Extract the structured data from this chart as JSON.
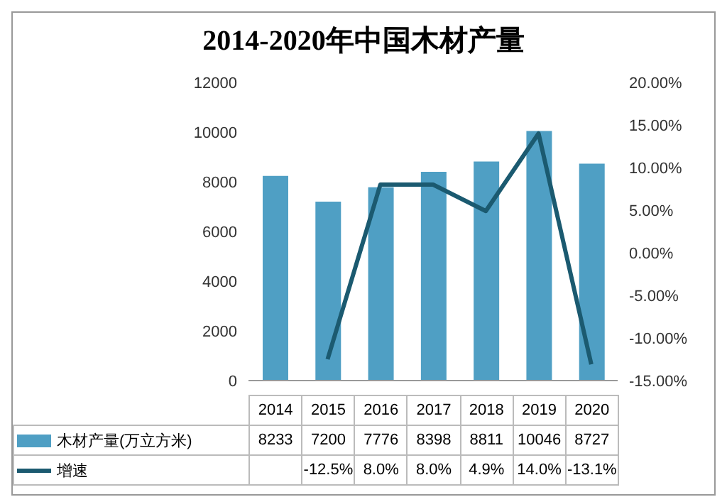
{
  "chart_data": {
    "type": "bar",
    "title": "2014-2020年中国木材产量",
    "categories": [
      "2014",
      "2015",
      "2016",
      "2017",
      "2018",
      "2019",
      "2020"
    ],
    "series": [
      {
        "name": "木材产量(万立方米)",
        "color": "#4f9fc4",
        "values": [
          8233,
          7200,
          7776,
          8398,
          8811,
          10046,
          8727
        ],
        "value_labels": [
          "8233",
          "7200",
          "7776",
          "8398",
          "8811",
          "10046",
          "8727"
        ]
      },
      {
        "name": "增速",
        "type": "line",
        "axis": "y2",
        "color": "#1b5a70",
        "values": [
          null,
          -12.5,
          8.0,
          8.0,
          4.9,
          14.0,
          -13.1
        ],
        "value_labels": [
          null,
          "-12.5%",
          "8.0%",
          "8.0%",
          "4.9%",
          "14.0%",
          "-13.1%"
        ]
      }
    ],
    "ylim": [
      0,
      12000
    ],
    "yticks": [
      0,
      2000,
      4000,
      6000,
      8000,
      10000,
      12000
    ],
    "y2lim": [
      -15,
      20
    ],
    "y2ticks": [
      {
        "value": -15,
        "label": "-15.00%"
      },
      {
        "value": -10,
        "label": "-10.00%"
      },
      {
        "value": -5,
        "label": "-5.00%"
      },
      {
        "value": 0,
        "label": "0.00%"
      },
      {
        "value": 5,
        "label": "5.00%"
      },
      {
        "value": 10,
        "label": "10.00%"
      },
      {
        "value": 15,
        "label": "15.00%"
      },
      {
        "value": 20,
        "label": "20.00%"
      }
    ],
    "grid": false,
    "legend": "bottom",
    "marker": "none",
    "line_style": "solid"
  }
}
